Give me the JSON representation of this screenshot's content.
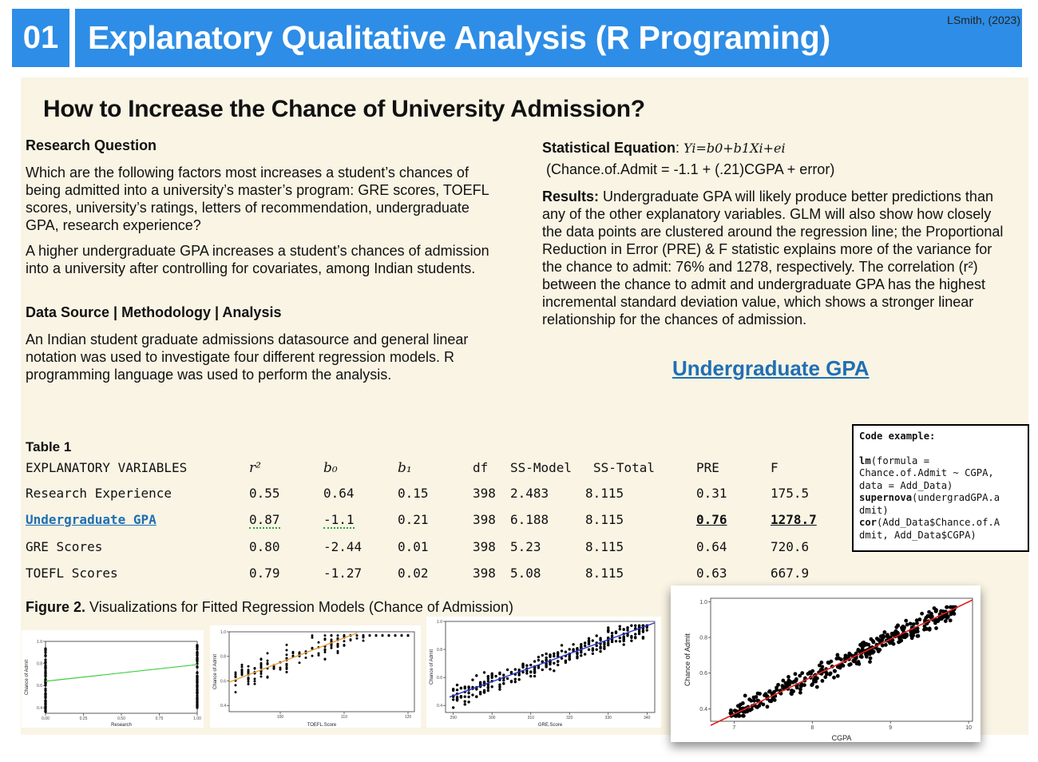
{
  "header": {
    "number": "01",
    "title": "Explanatory Qualitative Analysis (R Programing)",
    "author": "LSmith, (2023)"
  },
  "main_title": "How to Increase the Chance of University Admission?",
  "research_question": {
    "heading": "Research Question",
    "para1": "Which are the following factors most increases a student’s chances of being admitted into a university’s master’s program: GRE scores, TOEFL scores, university’s ratings, letters of recommendation, undergraduate GPA, research experience?",
    "para2": "A higher undergraduate GPA increases a student’s chances of admission into a university after controlling for covariates, among Indian students."
  },
  "data_source": {
    "heading": "Data Source | Methodology | Analysis",
    "para": "An Indian student graduate admissions datasource and general linear notation was used to investigate four different regression models. R programming language was used to perform the analysis."
  },
  "statistical_equation": {
    "label": "Statistical Equation",
    "equation": "Yi=b0+b1Xi+ei",
    "line2": "(Chance.of.Admit = -1.1 + (.21)CGPA + error)"
  },
  "results": {
    "label": "Results:",
    "text": "Undergraduate GPA will likely produce better predictions than any of the other explanatory variables. GLM will also show how closely the data points are clustered around the regression line; the Proportional Reduction in Error (PRE) & F statistic explains more of the variance for the chance to admit: 76% and 1278, respectively. The correlation (r²) between the chance to admit and undergraduate GPA has the highest incremental standard deviation value, which shows a stronger linear relationship for the chances of admission."
  },
  "highlight_link": "Undergraduate GPA",
  "table": {
    "caption": "Table 1",
    "headers": [
      "EXPLANATORY VARIABLES",
      "r²",
      "b₀",
      "b₁",
      "df",
      "SS-Model",
      "SS-Total",
      "PRE",
      "F"
    ],
    "rows": [
      [
        "Research Experience",
        "0.55",
        "0.64",
        "0.15",
        "398",
        "2.483",
        "8.115",
        "0.31",
        "175.5"
      ],
      [
        "Undergraduate GPA",
        "0.87",
        "-1.1",
        "0.21",
        "398",
        "6.188",
        "8.115",
        "0.76",
        "1278.7"
      ],
      [
        "GRE Scores",
        "0.80",
        "-2.44",
        "0.01",
        "398",
        "5.23",
        "8.115",
        "0.64",
        "720.6"
      ],
      [
        "TOEFL Scores",
        "0.79",
        "-1.27",
        "0.02",
        "398",
        "5.08",
        "8.115",
        "0.63",
        "667.9"
      ]
    ]
  },
  "code_example": {
    "title": "Code example:",
    "lines": [
      [
        "",
        "lm",
        "(formula ="
      ],
      [
        "",
        "",
        "Chance.of.Admit ~ CGPA,"
      ],
      [
        "",
        "",
        "data = Add_Data)"
      ],
      [
        "",
        "supernova",
        "(undergradGPA.a"
      ],
      [
        "",
        "",
        "dmit)"
      ],
      [
        "",
        "cor",
        "(Add_Data$Chance.of.A"
      ],
      [
        "",
        "",
        "dmit, Add_Data$CGPA)"
      ]
    ]
  },
  "figure": {
    "caption_bold": "Figure 2.",
    "caption_text": "Visualizations for Fitted Regression Models (Chance of Admission)"
  },
  "plots": {
    "research": {
      "xlabel": "Research",
      "ylabel": "Chance of Admit",
      "xticks": [
        "0.00",
        "0.25",
        "0.50",
        "0.75",
        "1.00"
      ],
      "yticks": [
        "1.0",
        "0.8",
        "0.6",
        "0.4"
      ],
      "line_color": "#3fcf3f"
    },
    "toefl": {
      "xlabel": "TOEFL.Score",
      "ylabel": "Chance of Admit",
      "xticks": [
        "100",
        "110",
        "120"
      ],
      "yticks": [
        "1.0",
        "0.8",
        "0.6",
        "0.4"
      ],
      "line_color": "#e8a33c"
    },
    "gre": {
      "xlabel": "GRE.Score",
      "ylabel": "Chance of Admit",
      "xticks": [
        "290",
        "300",
        "310",
        "320",
        "330",
        "340"
      ],
      "yticks": [
        "1.0",
        "0.8",
        "0.6",
        "0.4"
      ],
      "line_color": "#2a36c9"
    },
    "cgpa": {
      "xlabel": "CGPA",
      "ylabel": "Chance of Admit",
      "xticks": [
        "7",
        "8",
        "9",
        "10"
      ],
      "yticks": [
        "1.0",
        "0.8",
        "0.6",
        "0.4"
      ],
      "line_color": "#e0201c"
    }
  },
  "chart_data": [
    {
      "type": "scatter",
      "xlabel": "Research",
      "ylabel": "Chance of Admit",
      "xlim": [
        0,
        1
      ],
      "ylim": [
        0.35,
        1.0
      ],
      "fit": {
        "intercept": 0.64,
        "slope": 0.15
      }
    },
    {
      "type": "scatter",
      "xlabel": "TOEFL.Score",
      "ylabel": "Chance of Admit",
      "xlim": [
        92,
        121
      ],
      "ylim": [
        0.35,
        1.0
      ],
      "fit": {
        "intercept": -1.27,
        "slope": 0.02
      }
    },
    {
      "type": "scatter",
      "xlabel": "GRE.Score",
      "ylabel": "Chance of Admit",
      "xlim": [
        288,
        342
      ],
      "ylim": [
        0.35,
        1.0
      ],
      "fit": {
        "intercept": -2.44,
        "slope": 0.01
      }
    },
    {
      "type": "scatter",
      "xlabel": "CGPA",
      "ylabel": "Chance of Admit",
      "xlim": [
        6.7,
        10.05
      ],
      "ylim": [
        0.33,
        1.02
      ],
      "fit": {
        "intercept": -1.1,
        "slope": 0.21
      }
    }
  ]
}
